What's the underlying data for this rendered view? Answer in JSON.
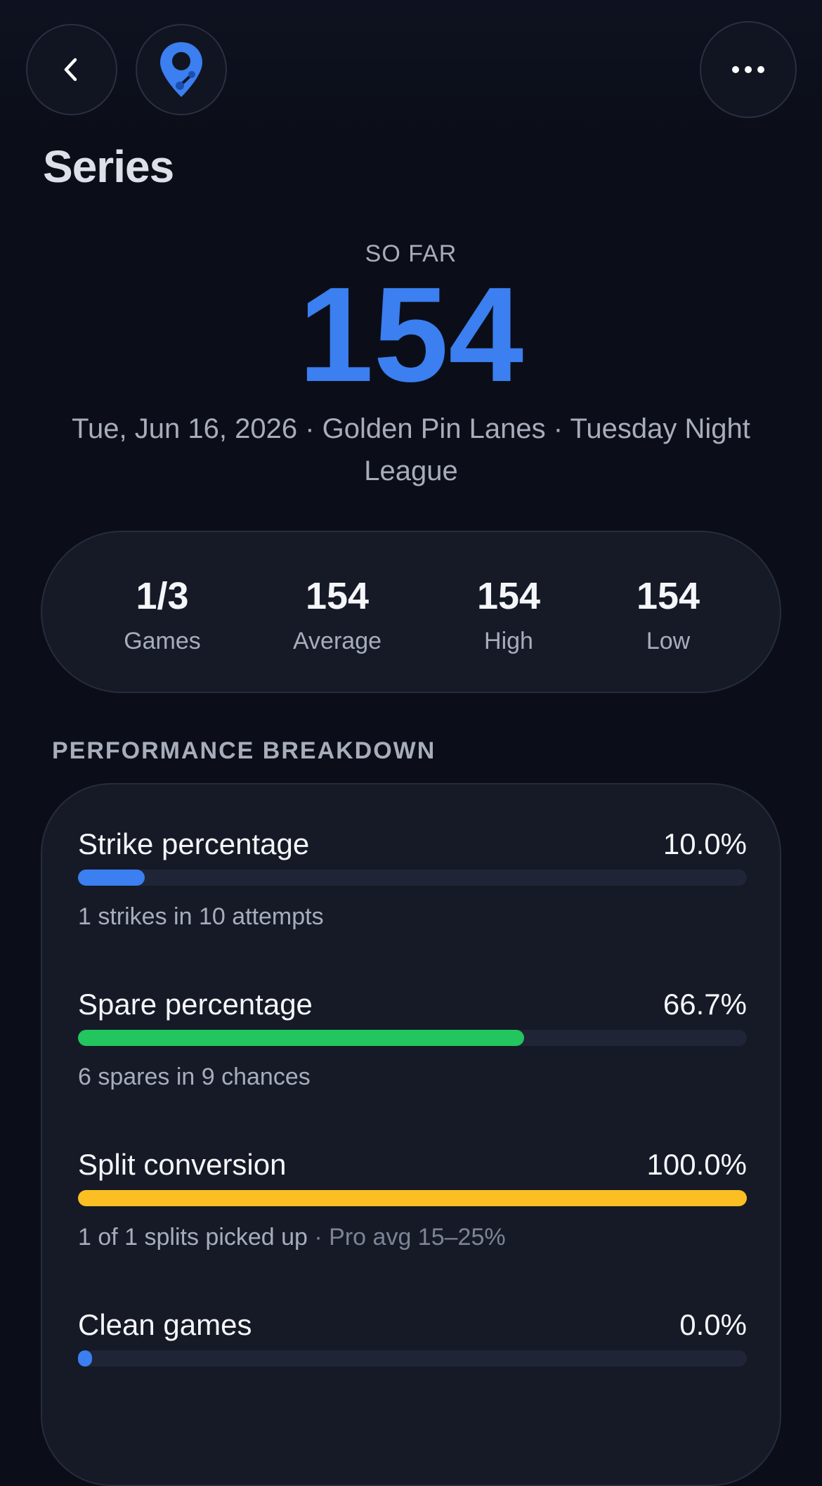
{
  "header": {
    "title": "Series"
  },
  "summary": {
    "eyebrow": "SO FAR",
    "score": "154",
    "details": "Tue, Jun 16, 2026 · Golden Pin Lanes · Tuesday Night League"
  },
  "stats": [
    {
      "value": "1/3",
      "label": "Games"
    },
    {
      "value": "154",
      "label": "Average"
    },
    {
      "value": "154",
      "label": "High"
    },
    {
      "value": "154",
      "label": "Low"
    }
  ],
  "breakdown": {
    "title": "PERFORMANCE BREAKDOWN",
    "items": [
      {
        "label": "Strike percentage",
        "value": 10.0,
        "value_label": "10.0%",
        "color": "#3b7ff0",
        "caption": "1 strikes in 10 attempts"
      },
      {
        "label": "Spare percentage",
        "value": 66.7,
        "value_label": "66.7%",
        "color": "#22c55e",
        "caption": "6 spares in 9 chances"
      },
      {
        "label": "Split conversion",
        "value": 100.0,
        "value_label": "100.0%",
        "color": "#fbbf24",
        "caption": "1 of 1 splits picked up",
        "caption_note": " · Pro avg 15–25%"
      },
      {
        "label": "Clean games",
        "value": 0.0,
        "value_label": "0.0%",
        "color": "#3b7ff0"
      }
    ]
  }
}
